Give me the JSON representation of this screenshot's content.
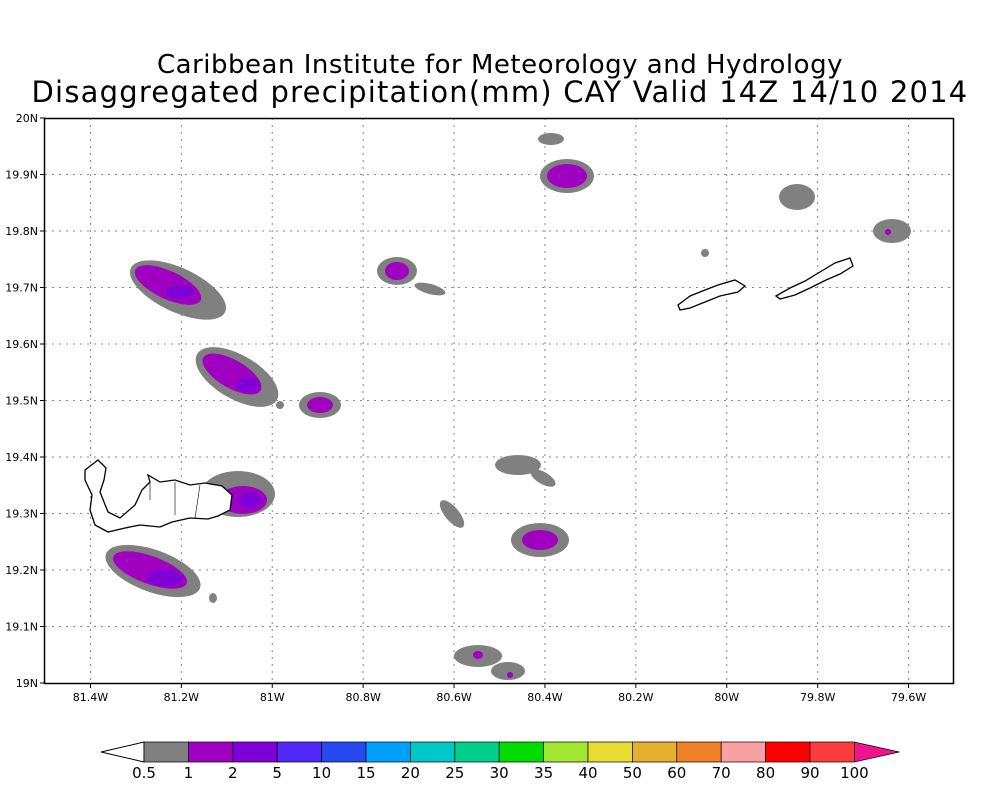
{
  "title_line1": "Caribbean Institute for Meteorology and Hydrology",
  "title_line2": "Disaggregated precipitation(mm) CAY Valid 14Z 14/10 2014",
  "x_ticks": [
    "81.4W",
    "81.2W",
    "81W",
    "80.8W",
    "80.6W",
    "80.4W",
    "80.2W",
    "80W",
    "79.8W",
    "79.6W"
  ],
  "x_tick_values": [
    -81.4,
    -81.2,
    -81.0,
    -80.8,
    -80.6,
    -80.4,
    -80.2,
    -80.0,
    -79.8,
    -79.6
  ],
  "y_ticks": [
    "19N",
    "19.1N",
    "19.2N",
    "19.3N",
    "19.4N",
    "19.5N",
    "19.6N",
    "19.7N",
    "19.8N",
    "19.9N",
    "20N"
  ],
  "y_tick_values": [
    19.0,
    19.1,
    19.2,
    19.3,
    19.4,
    19.5,
    19.6,
    19.7,
    19.8,
    19.9,
    20.0
  ],
  "lon_range": [
    -81.5,
    -79.5
  ],
  "lat_range": [
    19.0,
    20.0
  ],
  "colorbar": {
    "labels": [
      "0.5",
      "1",
      "2",
      "5",
      "10",
      "15",
      "20",
      "25",
      "30",
      "35",
      "40",
      "50",
      "60",
      "70",
      "80",
      "90",
      "100"
    ],
    "colors": [
      "#808080",
      "#a000c0",
      "#8000d8",
      "#5028f8",
      "#2848f0",
      "#00a0ff",
      "#00c8c8",
      "#00d08c",
      "#00dc00",
      "#a0e632",
      "#e6dc32",
      "#e6af2d",
      "#f08228",
      "#faa0a0",
      "#ff0000",
      "#fa3c3c"
    ],
    "under_color": "#ffffff",
    "over_color": "#f0148c"
  },
  "colors": {
    "light": "#808080",
    "medium": "#a000c0",
    "heavy": "#8000d8"
  }
}
